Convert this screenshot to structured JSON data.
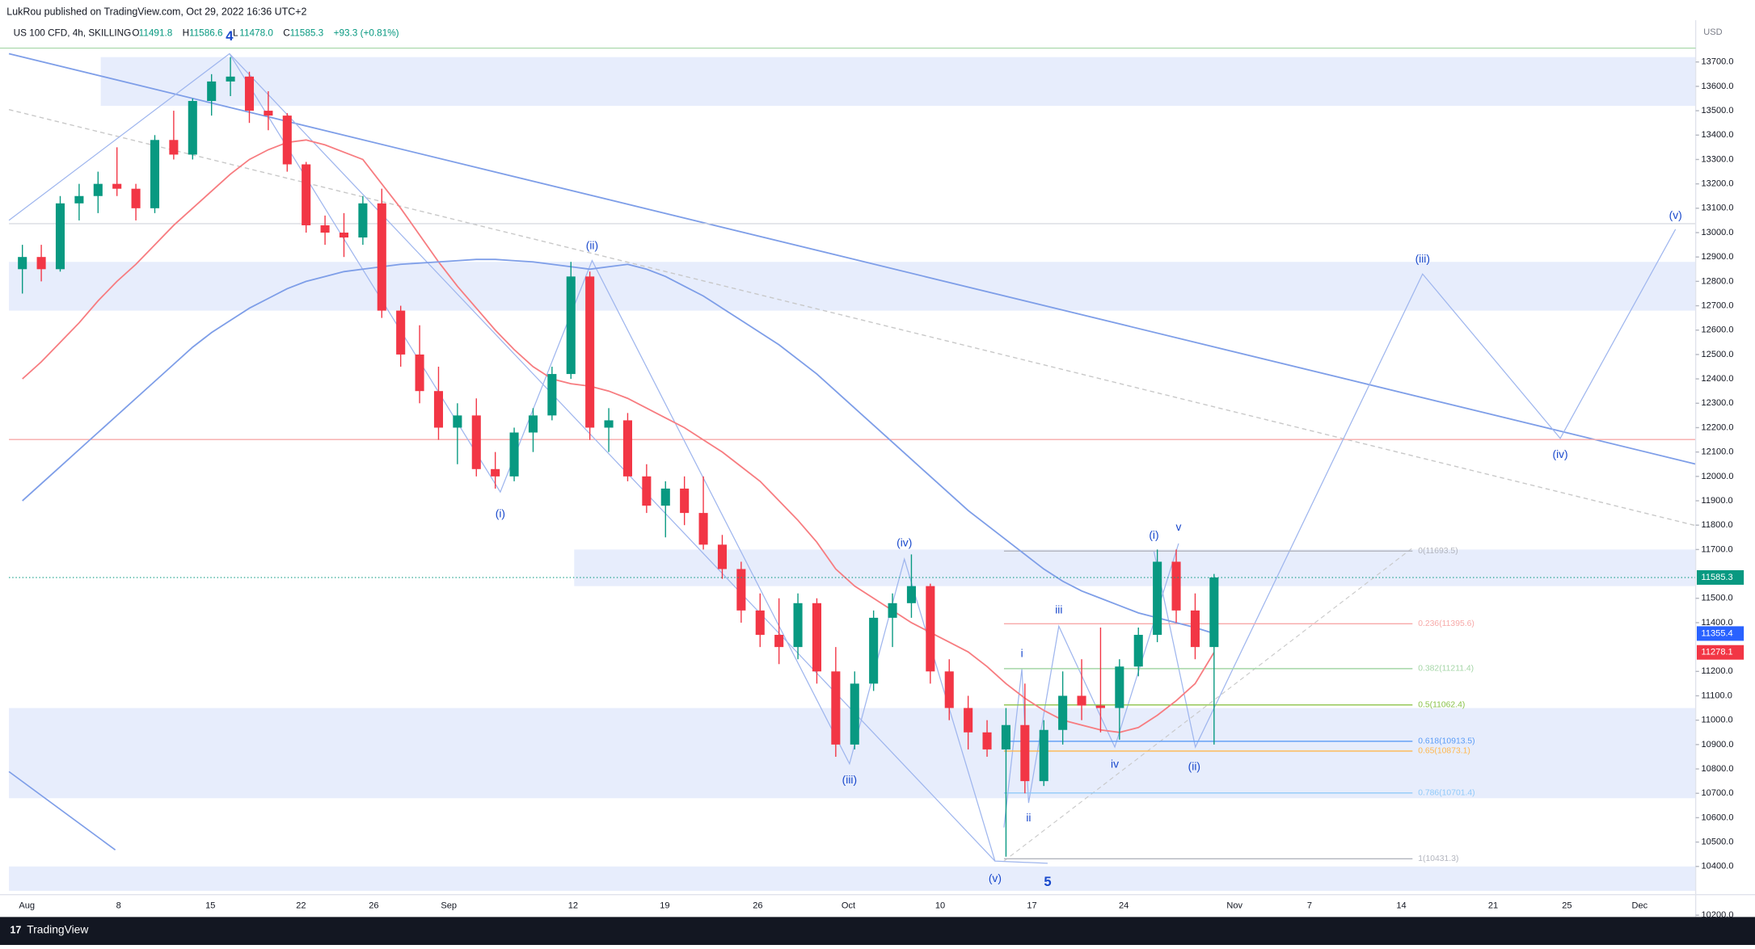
{
  "chart_data": {
    "type": "candlestick",
    "publisher": "LukRou published on TradingView.com, Oct 29, 2022 16:36 UTC+2",
    "symbol": "US 100 CFD, 4h, SKILLING",
    "quote_labels": [
      "O",
      "H",
      "L",
      "C"
    ],
    "quote_values": [
      11491.8,
      11586.6,
      {
        "value": 11478.0,
        "label": "11478.0"
      },
      11585.3
    ],
    "change": "+93.3 (+0.81%)",
    "currency": "USD",
    "brand": "TradingView",
    "up_color": "#089981",
    "down_color": "#f23645",
    "ylim": [
      10200,
      13780
    ],
    "yticks": [
      {
        "value": 10200,
        "label": "10200.0"
      },
      {
        "value": 10400,
        "label": "10400.0"
      },
      {
        "value": 10500,
        "label": "10500.0"
      },
      {
        "value": 10600,
        "label": "10600.0"
      },
      {
        "value": 10700,
        "label": "10700.0"
      },
      {
        "value": 10800,
        "label": "10800.0"
      },
      {
        "value": 10900,
        "label": "10900.0"
      },
      {
        "value": 11000,
        "label": "11000.0"
      },
      {
        "value": 11100,
        "label": "11100.0"
      },
      {
        "value": 11200,
        "label": "11200.0"
      },
      {
        "value": 11400,
        "label": "11400.0"
      },
      {
        "value": 11500,
        "label": "11500.0"
      },
      {
        "value": 11700,
        "label": "11700.0"
      },
      {
        "value": 11800,
        "label": "11800.0"
      },
      {
        "value": 11900,
        "label": "11900.0"
      },
      {
        "value": 12000,
        "label": "12000.0"
      },
      {
        "value": 12100,
        "label": "12100.0"
      },
      {
        "value": 12200,
        "label": "12200.0"
      },
      {
        "value": 12300,
        "label": "12300.0"
      },
      {
        "value": 12400,
        "label": "12400.0"
      },
      {
        "value": 12500,
        "label": "12500.0"
      },
      {
        "value": 12600,
        "label": "12600.0"
      },
      {
        "value": 12700,
        "label": "12700.0"
      },
      {
        "value": 12800,
        "label": "12800.0"
      },
      {
        "value": 12900,
        "label": "12900.0"
      },
      {
        "value": 13000,
        "label": "13000.0"
      },
      {
        "value": 13100,
        "label": "13100.0"
      },
      {
        "value": 13200,
        "label": "13200.0"
      },
      {
        "value": 13300,
        "label": "13300.0"
      },
      {
        "value": 13400,
        "label": "13400.0"
      },
      {
        "value": 13500,
        "label": "13500.0"
      },
      {
        "value": 13600,
        "label": "13600.0"
      },
      {
        "value": 13700,
        "label": "13700.0"
      }
    ],
    "x_labels": [
      "Aug",
      "8",
      "15",
      "22",
      "26",
      "Sep",
      "12",
      "19",
      "26",
      "Oct",
      "10",
      "17",
      "24",
      "Nov",
      "7",
      "14",
      "21",
      "25",
      "Dec"
    ],
    "candles": [
      [
        12850,
        12950,
        12750,
        12900
      ],
      [
        12900,
        12950,
        12800,
        12850
      ],
      [
        12850,
        13150,
        12840,
        13120
      ],
      [
        13120,
        13200,
        13050,
        13150
      ],
      [
        13150,
        13250,
        13080,
        13200
      ],
      [
        13200,
        13350,
        13150,
        13180
      ],
      [
        13180,
        13200,
        13050,
        13100
      ],
      [
        13100,
        13400,
        13080,
        13380
      ],
      [
        13380,
        13500,
        13300,
        13320
      ],
      [
        13320,
        13550,
        13300,
        13540
      ],
      [
        13540,
        13650,
        13480,
        13620
      ],
      [
        13620,
        13720,
        13560,
        13640
      ],
      [
        13640,
        13660,
        13450,
        13500
      ],
      [
        13500,
        13580,
        13420,
        13480
      ],
      [
        13480,
        13490,
        13250,
        13280
      ],
      [
        13280,
        13290,
        13000,
        13030
      ],
      [
        13030,
        13070,
        12950,
        13000
      ],
      [
        13000,
        13080,
        12900,
        12980
      ],
      [
        12980,
        13150,
        12950,
        13120
      ],
      [
        13120,
        13180,
        12650,
        12680
      ],
      [
        12680,
        12700,
        12450,
        12500
      ],
      [
        12500,
        12620,
        12300,
        12350
      ],
      [
        12350,
        12450,
        12150,
        12200
      ],
      [
        12200,
        12300,
        12050,
        12250
      ],
      [
        12250,
        12320,
        12000,
        12030
      ],
      [
        12030,
        12100,
        11950,
        12000
      ],
      [
        12000,
        12200,
        11980,
        12180
      ],
      [
        12180,
        12280,
        12100,
        12250
      ],
      [
        12250,
        12450,
        12230,
        12420
      ],
      [
        12420,
        12880,
        12400,
        12820
      ],
      [
        12820,
        12840,
        12150,
        12200
      ],
      [
        12200,
        12280,
        12100,
        12230
      ],
      [
        12230,
        12260,
        11980,
        12000
      ],
      [
        12000,
        12050,
        11850,
        11880
      ],
      [
        11880,
        11980,
        11750,
        11950
      ],
      [
        11950,
        12000,
        11800,
        11850
      ],
      [
        11850,
        12000,
        11700,
        11720
      ],
      [
        11720,
        11760,
        11580,
        11620
      ],
      [
        11620,
        11650,
        11400,
        11450
      ],
      [
        11450,
        11520,
        11300,
        11350
      ],
      [
        11350,
        11500,
        11230,
        11300
      ],
      [
        11300,
        11520,
        11250,
        11480
      ],
      [
        11480,
        11500,
        11150,
        11200
      ],
      [
        11200,
        11300,
        10850,
        10900
      ],
      [
        10900,
        11200,
        10880,
        11150
      ],
      [
        11150,
        11450,
        11120,
        11420
      ],
      [
        11420,
        11520,
        11300,
        11480
      ],
      [
        11480,
        11680,
        11420,
        11550
      ],
      [
        11550,
        11560,
        11150,
        11200
      ],
      [
        11200,
        11250,
        11000,
        11050
      ],
      [
        11050,
        11100,
        10880,
        10950
      ],
      [
        10950,
        11000,
        10850,
        10880
      ],
      [
        10880,
        11050,
        10440,
        10980
      ],
      [
        10980,
        11150,
        10700,
        10750
      ],
      [
        10750,
        11000,
        10730,
        10960
      ],
      [
        10960,
        11200,
        10900,
        11100
      ],
      [
        11100,
        11250,
        11000,
        11060
      ],
      [
        11060,
        11380,
        10950,
        11050
      ],
      [
        11050,
        11250,
        10920,
        11220
      ],
      [
        11220,
        11380,
        11180,
        11350
      ],
      [
        11350,
        11700,
        11320,
        11650
      ],
      [
        11650,
        11700,
        11400,
        11450
      ],
      [
        11450,
        11520,
        11250,
        11300
      ],
      [
        11300,
        11600,
        10900,
        11585.3
      ]
    ],
    "series": [
      {
        "color": "#f77c80",
        "values": [
          12400,
          12470,
          12550,
          12630,
          12720,
          12800,
          12870,
          12950,
          13030,
          13100,
          13170,
          13240,
          13300,
          13340,
          13370,
          13380,
          13360,
          13330,
          13300,
          13200,
          13100,
          12990,
          12880,
          12780,
          12690,
          12600,
          12520,
          12450,
          12400,
          12380,
          12370,
          12350,
          12320,
          12280,
          12240,
          12200,
          12150,
          12100,
          12040,
          11980,
          11900,
          11820,
          11730,
          11620,
          11550,
          11500,
          11450,
          11400,
          11360,
          11320,
          11280,
          11220,
          11150,
          11090,
          11040,
          11000,
          10980,
          10960,
          10950,
          10970,
          11020,
          11080,
          11150,
          11278.1
        ]
      },
      {
        "color": "#7e9ee8",
        "values": [
          11900,
          11970,
          12040,
          12110,
          12180,
          12250,
          12320,
          12390,
          12460,
          12530,
          12590,
          12640,
          12690,
          12730,
          12770,
          12800,
          12820,
          12840,
          12850,
          12860,
          12870,
          12875,
          12880,
          12885,
          12890,
          12890,
          12885,
          12880,
          12870,
          12860,
          12850,
          12860,
          12870,
          12850,
          12820,
          12780,
          12740,
          12690,
          12640,
          12590,
          12540,
          12480,
          12420,
          12350,
          12280,
          12210,
          12140,
          12070,
          12000,
          11930,
          11860,
          11800,
          11740,
          11680,
          11620,
          11570,
          11530,
          11500,
          11470,
          11440,
          11420,
          11400,
          11380,
          11355.4
        ]
      }
    ],
    "price_tags": [
      {
        "value": 11585.3,
        "color": "#089981"
      },
      {
        "value": 11355.4,
        "color": "#2962ff"
      },
      {
        "value": 11278.1,
        "color": "#f23645"
      }
    ],
    "zones": [
      [
        13520,
        13720
      ],
      [
        12680,
        12880
      ],
      [
        11550,
        11700
      ],
      [
        10680,
        11050
      ],
      [
        10300,
        10400
      ]
    ],
    "fib_levels": [
      {
        "label": "0(11693.5)",
        "value": 11693.5,
        "color": "#b2b5be"
      },
      {
        "label": "0.236(11395.6)",
        "value": 11395.6,
        "color": "#f7a9a8"
      },
      {
        "label": "0.382(11211.4)",
        "value": 11211.4,
        "color": "#a5d6a7"
      },
      {
        "label": "0.5(11062.4)",
        "value": 11062.4,
        "color": "#8bc34a"
      },
      {
        "label": "0.618(10913.5)",
        "value": 10913.5,
        "color": "#5b9cf6"
      },
      {
        "label": "0.65(10873.1)",
        "value": 10873.1,
        "color": "#ffb74d"
      },
      {
        "label": "0.786(10701.4)",
        "value": 10701.4,
        "color": "#90caf9"
      },
      {
        "label": "1(10431.3)",
        "value": 10431.3,
        "color": "#b2b5be"
      }
    ],
    "wave_labels": [
      "4",
      "(ii)",
      "(i)",
      "(iii)",
      "(iv)",
      "(v)",
      "5",
      "i",
      "ii",
      "iii",
      "iv",
      "v",
      "(i)",
      "(ii)",
      "(iii)",
      "(iv)",
      "(v)"
    ]
  }
}
